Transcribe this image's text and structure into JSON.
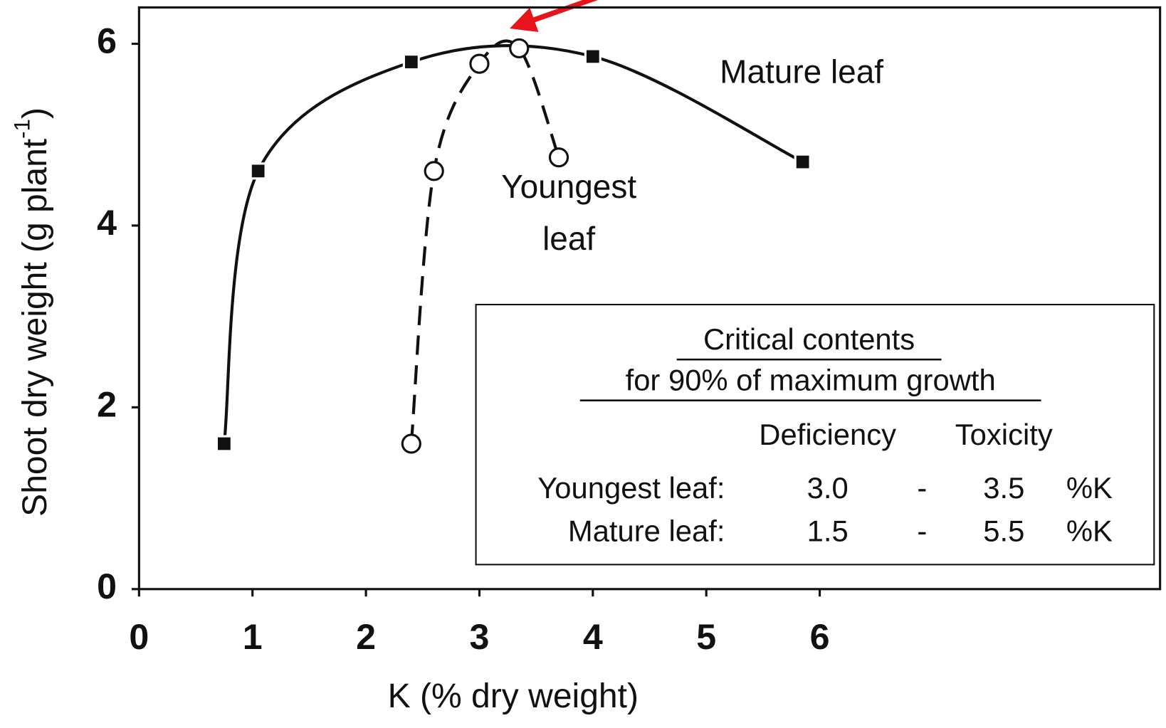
{
  "chart_data": {
    "type": "line",
    "x_label": "K (% dry weight)",
    "y_label": "Shoot dry weight (g plant",
    "y_label_sup": "-1",
    "y_label_end": ")",
    "xlim": [
      0,
      9
    ],
    "ylim": [
      0,
      6.4
    ],
    "xticks": [
      0,
      1,
      2,
      3,
      4,
      5,
      6
    ],
    "yticks": [
      0,
      2,
      4,
      6
    ],
    "series": [
      {
        "name": "Mature leaf",
        "color": "#111111",
        "marker": "square",
        "dash": false,
        "x": [
          0.75,
          1.05,
          2.4,
          4.0,
          5.85
        ],
        "values": [
          1.6,
          4.6,
          5.8,
          5.86,
          4.7
        ]
      },
      {
        "name": "Youngest leaf",
        "color": "#111111",
        "marker": "circle",
        "dash": true,
        "x": [
          2.4,
          2.6,
          3.0,
          3.35,
          3.7
        ],
        "values": [
          1.6,
          4.6,
          5.78,
          5.95,
          4.75
        ]
      }
    ],
    "table": {
      "title": [
        "Critical contents",
        "for 90% of maximum growth"
      ],
      "header": [
        "Deficiency",
        "Toxicity"
      ],
      "rows": [
        [
          "Youngest leaf:",
          "3.0",
          "-",
          "3.5",
          "%K"
        ],
        [
          "Mature leaf:",
          "1.5",
          "-",
          "5.5",
          "%K"
        ]
      ]
    }
  }
}
